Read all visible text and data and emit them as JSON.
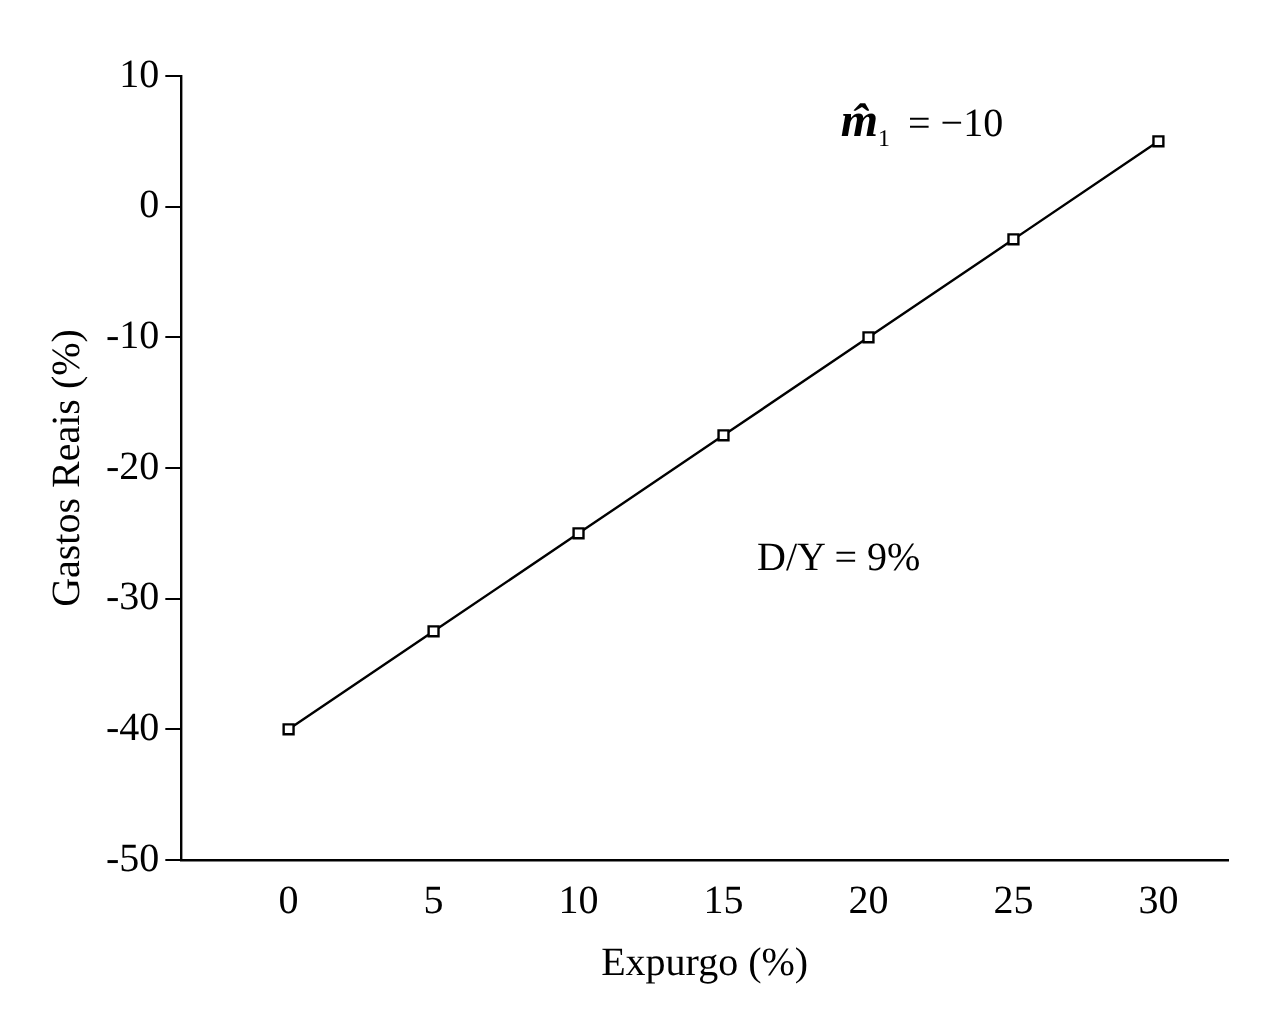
{
  "chart_data": {
    "type": "line",
    "xlabel": "Expurgo (%)",
    "ylabel": "Gastos Reais (%)",
    "x": [
      0,
      5,
      10,
      15,
      20,
      25,
      30
    ],
    "series": [
      {
        "color": "#000000",
        "values": [
          -40,
          -32.5,
          -25,
          -17.5,
          -10,
          -2.5,
          5
        ]
      }
    ],
    "xlim": [
      -3.7,
      32.4
    ],
    "xticks": [
      0,
      5,
      10,
      15,
      20,
      25,
      30
    ],
    "ylim": [
      -50,
      10
    ],
    "yticks": [
      -50,
      -40,
      -30,
      -20,
      -10,
      0,
      10
    ],
    "annotations": [
      "m̂$_{1}$ = −10",
      "D/Y = 9%"
    ],
    "grid": false,
    "legend": false,
    "marker": "square",
    "line_style": "solid"
  }
}
